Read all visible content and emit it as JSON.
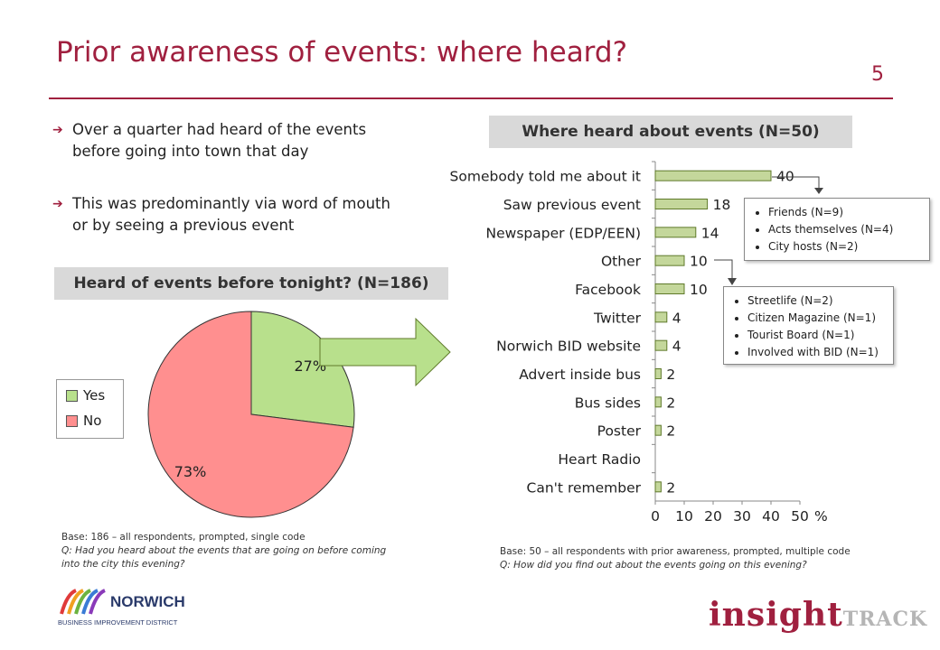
{
  "slide": {
    "title": "Prior awareness of events: where heard?",
    "page_number": "5"
  },
  "bullets": [
    "Over a quarter had heard of the events before going into town that day",
    "This was predominantly via word of mouth or by seeing a previous event"
  ],
  "pie_panel": {
    "heading": "Heard of events before tonight? (N=186)",
    "base_line": "Base: 186 – all respondents, prompted, single code",
    "question_line1": "Q: Had you heard about the events that are going on before coming",
    "question_line2": "into the city this evening?"
  },
  "bar_panel": {
    "heading": "Where heard about events (N=50)",
    "base_line": "Base: 50 – all respondents with prior awareness, prompted, multiple code",
    "question_line": "Q: How did you find out about the events going on this evening?"
  },
  "callouts": {
    "somebody_told": [
      "Friends (N=9)",
      "Acts themselves (N=4)",
      "City hosts (N=2)"
    ],
    "other": [
      "Streetlife (N=2)",
      "Citizen Magazine (N=1)",
      "Tourist Board (N=1)",
      "Involved with BID (N=1)"
    ]
  },
  "colors": {
    "accent": "#a0203f",
    "yes": "#b8e08c",
    "no": "#ff8f8f",
    "bar_fill": "#c4d79b",
    "bar_stroke": "#5f7a2a",
    "arrow_fill": "#b8e08c"
  },
  "chart_data": [
    {
      "type": "pie",
      "title": "Heard of events before tonight? (N=186)",
      "categories": [
        "Yes",
        "No"
      ],
      "values": [
        27,
        73
      ],
      "labels": [
        "27%",
        "73%"
      ],
      "legend": [
        "Yes",
        "No"
      ],
      "legend_position": "left"
    },
    {
      "type": "bar",
      "orientation": "horizontal",
      "title": "Where heard about events (N=50)",
      "categories": [
        "Somebody told me about it",
        "Saw previous event",
        "Newspaper (EDP/EEN)",
        "Other",
        "Facebook",
        "Twitter",
        "Norwich BID website",
        "Advert inside bus",
        "Bus sides",
        "Poster",
        "Heart Radio",
        "Can't remember"
      ],
      "values": [
        40,
        18,
        14,
        10,
        10,
        4,
        4,
        2,
        2,
        2,
        null,
        2
      ],
      "data_labels": [
        "40",
        "18",
        "14",
        "10",
        "10",
        "4",
        "4",
        "2",
        "2",
        "2",
        "",
        "2"
      ],
      "xlim": [
        0,
        50
      ],
      "x_ticks": [
        "0",
        "10",
        "20",
        "30",
        "40",
        "50"
      ],
      "xlabel": "%",
      "grid": false
    }
  ],
  "logos": {
    "left_logo_text": "NORWICH",
    "left_logo_subtext": "BUSINESS IMPROVEMENT DISTRICT",
    "right_logo_text_a": "insight",
    "right_logo_text_b": "TRACK"
  }
}
